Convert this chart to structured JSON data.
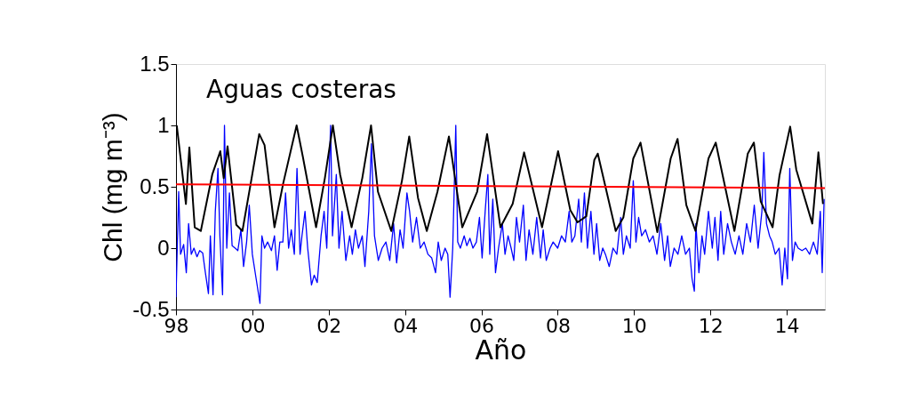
{
  "chart_data": {
    "type": "line",
    "xlabel": "Año",
    "ylabel": "Chl (mg m⁻³)",
    "annotations": [
      "Aguas costeras"
    ],
    "xlim": [
      1998,
      2015
    ],
    "ylim": [
      -0.5,
      1.5
    ],
    "xticks": [
      {
        "value": 1998,
        "label": "98"
      },
      {
        "value": 2000,
        "label": "00"
      },
      {
        "value": 2002,
        "label": "02"
      },
      {
        "value": 2004,
        "label": "04"
      },
      {
        "value": 2006,
        "label": "06"
      },
      {
        "value": 2008,
        "label": "08"
      },
      {
        "value": 2010,
        "label": "10"
      },
      {
        "value": 2012,
        "label": "12"
      },
      {
        "value": 2014,
        "label": "14"
      }
    ],
    "yticks": [
      -0.5,
      0,
      0.5,
      1,
      1.5
    ],
    "grid": false,
    "marker": "none",
    "line_style": "solid",
    "series": [
      {
        "color": "#0000ff",
        "x": [
          1998.0,
          1998.07,
          1998.12,
          1998.2,
          1998.27,
          1998.33,
          1998.4,
          1998.47,
          1998.55,
          1998.62,
          1998.7,
          1998.77,
          1998.85,
          1998.9,
          1998.97,
          1999.03,
          1999.1,
          1999.15,
          1999.22,
          1999.27,
          1999.33,
          1999.4,
          1999.47,
          1999.55,
          1999.62,
          1999.7,
          1999.77,
          1999.85,
          1999.92,
          2000.0,
          2000.1,
          2000.2,
          2000.25,
          2000.32,
          2000.4,
          2000.5,
          2000.58,
          2000.65,
          2000.72,
          2000.8,
          2000.87,
          2000.95,
          2001.02,
          2001.1,
          2001.17,
          2001.25,
          2001.3,
          2001.38,
          2001.45,
          2001.55,
          2001.62,
          2001.7,
          2001.8,
          2001.88,
          2001.95,
          2002.05,
          2002.1,
          2002.2,
          2002.27,
          2002.35,
          2002.45,
          2002.55,
          2002.62,
          2002.7,
          2002.78,
          2002.88,
          2002.95,
          2003.05,
          2003.12,
          2003.2,
          2003.3,
          2003.4,
          2003.5,
          2003.6,
          2003.7,
          2003.78,
          2003.87,
          2003.95,
          2004.05,
          2004.12,
          2004.2,
          2004.3,
          2004.4,
          2004.5,
          2004.6,
          2004.7,
          2004.8,
          2004.87,
          2004.95,
          2005.05,
          2005.12,
          2005.18,
          2005.25,
          2005.33,
          2005.38,
          2005.45,
          2005.55,
          2005.62,
          2005.7,
          2005.78,
          2005.87,
          2005.95,
          2006.02,
          2006.1,
          2006.17,
          2006.22,
          2006.3,
          2006.37,
          2006.45,
          2006.55,
          2006.62,
          2006.7,
          2006.78,
          2006.85,
          2006.92,
          2007.0,
          2007.1,
          2007.17,
          2007.25,
          2007.35,
          2007.45,
          2007.55,
          2007.62,
          2007.7,
          2007.8,
          2007.88,
          2008.0,
          2008.1,
          2008.2,
          2008.3,
          2008.37,
          2008.45,
          2008.55,
          2008.62,
          2008.7,
          2008.78,
          2008.87,
          2008.95,
          2009.02,
          2009.1,
          2009.18,
          2009.25,
          2009.35,
          2009.45,
          2009.55,
          2009.65,
          2009.72,
          2009.8,
          2009.9,
          2009.98,
          2010.05,
          2010.12,
          2010.2,
          2010.3,
          2010.4,
          2010.5,
          2010.6,
          2010.7,
          2010.8,
          2010.88,
          2010.95,
          2011.05,
          2011.15,
          2011.25,
          2011.35,
          2011.45,
          2011.52,
          2011.58,
          2011.62,
          2011.7,
          2011.78,
          2011.85,
          2011.95,
          2012.05,
          2012.12,
          2012.2,
          2012.27,
          2012.35,
          2012.45,
          2012.55,
          2012.65,
          2012.75,
          2012.85,
          2012.95,
          2013.05,
          2013.15,
          2013.25,
          2013.35,
          2013.4,
          2013.47,
          2013.55,
          2013.62,
          2013.7,
          2013.8,
          2013.88,
          2013.95,
          2014.02,
          2014.08,
          2014.15,
          2014.22,
          2014.3,
          2014.4,
          2014.5,
          2014.6,
          2014.7,
          2014.8,
          2014.88,
          2014.93,
          2014.98
        ],
        "values": [
          -0.4,
          0.46,
          -0.05,
          0.03,
          -0.2,
          0.2,
          -0.05,
          0.0,
          -0.07,
          -0.02,
          -0.04,
          -0.2,
          -0.37,
          0.1,
          -0.38,
          0.3,
          0.65,
          0.1,
          -0.38,
          1.0,
          0.0,
          0.45,
          0.02,
          0.0,
          -0.02,
          0.15,
          -0.15,
          0.05,
          0.35,
          -0.05,
          -0.25,
          -0.45,
          0.1,
          0.0,
          0.05,
          -0.02,
          0.1,
          -0.18,
          0.05,
          0.05,
          0.45,
          0.0,
          0.15,
          -0.05,
          0.65,
          -0.05,
          0.1,
          0.3,
          0.0,
          -0.3,
          -0.22,
          -0.28,
          0.1,
          0.3,
          0.0,
          1.0,
          0.1,
          0.6,
          0.0,
          0.3,
          -0.1,
          0.1,
          -0.05,
          0.15,
          0.0,
          0.1,
          -0.15,
          0.3,
          0.85,
          0.1,
          -0.1,
          0.0,
          0.05,
          -0.1,
          0.2,
          -0.12,
          0.15,
          0.0,
          0.45,
          0.3,
          0.05,
          0.25,
          0.0,
          0.05,
          -0.05,
          -0.08,
          -0.2,
          0.05,
          -0.1,
          0.0,
          -0.05,
          -0.4,
          0.0,
          1.0,
          0.05,
          0.0,
          0.1,
          0.02,
          0.08,
          0.0,
          0.05,
          0.25,
          -0.08,
          0.3,
          0.6,
          -0.05,
          0.4,
          -0.2,
          0.0,
          0.2,
          -0.05,
          0.1,
          0.0,
          -0.1,
          0.25,
          0.05,
          0.35,
          -0.1,
          0.15,
          -0.05,
          0.25,
          -0.08,
          0.15,
          -0.1,
          0.0,
          0.05,
          0.0,
          0.1,
          0.05,
          0.3,
          0.05,
          0.1,
          0.4,
          0.05,
          0.45,
          0.0,
          0.3,
          -0.05,
          0.2,
          -0.1,
          0.0,
          -0.05,
          -0.15,
          0.0,
          -0.05,
          0.25,
          -0.05,
          0.1,
          0.0,
          0.55,
          0.05,
          0.25,
          0.1,
          0.15,
          0.05,
          0.1,
          -0.05,
          0.2,
          -0.1,
          0.1,
          -0.15,
          0.0,
          -0.05,
          0.1,
          -0.05,
          0.0,
          -0.25,
          -0.35,
          0.2,
          -0.2,
          0.1,
          -0.05,
          0.3,
          0.0,
          0.25,
          -0.1,
          0.3,
          -0.05,
          0.2,
          0.05,
          -0.05,
          0.1,
          -0.05,
          0.2,
          0.05,
          0.35,
          0.0,
          0.3,
          0.78,
          0.2,
          0.1,
          0.05,
          -0.05,
          0.0,
          -0.3,
          0.0,
          -0.25,
          0.65,
          -0.1,
          0.05,
          0.0,
          -0.02,
          0.0,
          -0.05,
          0.05,
          -0.05,
          0.3,
          -0.2,
          0.4
        ]
      },
      {
        "color": "#000000",
        "x": [
          1998.02,
          1998.26,
          1998.35,
          1998.49,
          1998.65,
          1998.95,
          1999.16,
          1999.25,
          1999.35,
          1999.58,
          1999.74,
          1999.97,
          2000.18,
          2000.32,
          2000.58,
          2000.81,
          2001.16,
          2001.32,
          2001.67,
          2001.9,
          2002.11,
          2002.3,
          2002.6,
          2002.88,
          2003.11,
          2003.29,
          2003.64,
          2003.92,
          2004.11,
          2004.34,
          2004.57,
          2004.85,
          2005.15,
          2005.5,
          2005.89,
          2006.15,
          2006.5,
          2006.82,
          2007.12,
          2007.59,
          2008.01,
          2008.33,
          2008.52,
          2008.75,
          2008.96,
          2009.05,
          2009.52,
          2009.72,
          2009.98,
          2010.17,
          2010.61,
          2010.96,
          2011.14,
          2011.37,
          2011.61,
          2011.95,
          2012.14,
          2012.63,
          2012.98,
          2013.14,
          2013.32,
          2013.63,
          2013.81,
          2014.09,
          2014.25,
          2014.67,
          2014.83,
          2014.95
        ],
        "values": [
          1.0,
          0.36,
          0.82,
          0.17,
          0.14,
          0.6,
          0.79,
          0.57,
          0.83,
          0.19,
          0.14,
          0.55,
          0.93,
          0.84,
          0.17,
          0.53,
          1.0,
          0.75,
          0.17,
          0.57,
          1.0,
          0.6,
          0.17,
          0.57,
          1.0,
          0.46,
          0.14,
          0.55,
          0.91,
          0.41,
          0.14,
          0.46,
          0.91,
          0.17,
          0.46,
          0.93,
          0.17,
          0.36,
          0.78,
          0.17,
          0.79,
          0.31,
          0.21,
          0.26,
          0.72,
          0.77,
          0.14,
          0.25,
          0.73,
          0.86,
          0.13,
          0.73,
          0.89,
          0.35,
          0.14,
          0.73,
          0.86,
          0.14,
          0.77,
          0.86,
          0.38,
          0.17,
          0.59,
          0.99,
          0.64,
          0.2,
          0.78,
          0.36
        ]
      },
      {
        "color": "#ff0000",
        "x": [
          1998,
          2015
        ],
        "values": [
          0.52,
          0.49
        ]
      }
    ]
  }
}
